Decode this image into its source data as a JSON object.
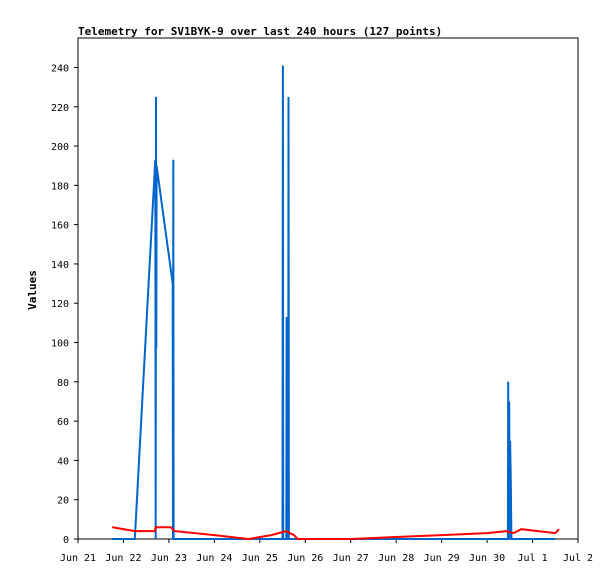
{
  "chart_data": {
    "type": "line",
    "title": "Telemetry for SV1BYK-9 over last 240 hours (127 points)",
    "xlabel": "",
    "ylabel": "Values",
    "ylim": [
      0,
      255
    ],
    "xlim": [
      "Jun 21",
      "Jul 2"
    ],
    "x_tick_labels": [
      "Jun 21",
      "Jun 22",
      "Jun 23",
      "Jun 24",
      "Jun 25",
      "Jun 26",
      "Jun 27",
      "Jun 28",
      "Jun 29",
      "Jun 30",
      "Jul 1",
      "Jul 2"
    ],
    "y_ticks": [
      0,
      20,
      40,
      60,
      80,
      100,
      120,
      140,
      160,
      180,
      200,
      220,
      240
    ],
    "grid": false,
    "legend": "none",
    "series": [
      {
        "color": "#0066cc",
        "points": [
          [
            "Jun 21 18:00",
            0
          ],
          [
            "Jun 22 06:00",
            0
          ],
          [
            "Jun 22 16:48",
            193
          ],
          [
            "Jun 22 17:00",
            0
          ],
          [
            "Jun 22 17:10",
            225
          ],
          [
            "Jun 22 17:20",
            97
          ],
          [
            "Jun 22 17:30",
            190
          ],
          [
            "Jun 23 02:00",
            130
          ],
          [
            "Jun 23 02:10",
            0
          ],
          [
            "Jun 23 02:20",
            193
          ],
          [
            "Jun 23 02:30",
            0
          ],
          [
            "Jun 25 12:00",
            0
          ],
          [
            "Jun 25 12:10",
            241
          ],
          [
            "Jun 25 12:20",
            0
          ],
          [
            "Jun 25 14:00",
            0
          ],
          [
            "Jun 25 14:10",
            113
          ],
          [
            "Jun 25 14:20",
            0
          ],
          [
            "Jun 25 15:00",
            0
          ],
          [
            "Jun 25 15:10",
            225
          ],
          [
            "Jun 25 15:20",
            0
          ],
          [
            "Jun 30 11:00",
            0
          ],
          [
            "Jun 30 11:10",
            80
          ],
          [
            "Jun 30 11:20",
            0
          ],
          [
            "Jun 30 11:40",
            70
          ],
          [
            "Jun 30 12:00",
            0
          ],
          [
            "Jun 30 12:10",
            50
          ],
          [
            "Jun 30 12:30",
            30
          ],
          [
            "Jun 30 12:50",
            0
          ],
          [
            "Jul 1 12:00",
            0
          ]
        ]
      },
      {
        "color": "#ff0000",
        "points": [
          [
            "Jun 21 18:00",
            6
          ],
          [
            "Jun 22 06:00",
            4
          ],
          [
            "Jun 22 16:00",
            4
          ],
          [
            "Jun 22 16:30",
            4
          ],
          [
            "Jun 22 17:00",
            6
          ],
          [
            "Jun 23 01:00",
            6
          ],
          [
            "Jun 23 03:00",
            4
          ],
          [
            "Jun 24 00:00",
            2
          ],
          [
            "Jun 24 18:00",
            0
          ],
          [
            "Jun 25 06:00",
            2
          ],
          [
            "Jun 25 14:00",
            4
          ],
          [
            "Jun 25 18:00",
            2
          ],
          [
            "Jun 25 20:00",
            0
          ],
          [
            "Jun 27 00:00",
            0
          ],
          [
            "Jun 28 00:00",
            1
          ],
          [
            "Jun 29 00:00",
            2
          ],
          [
            "Jun 30 00:00",
            3
          ],
          [
            "Jun 30 10:00",
            4
          ],
          [
            "Jun 30 14:00",
            3
          ],
          [
            "Jun 30 18:00",
            5
          ],
          [
            "Jul 1 12:00",
            3
          ],
          [
            "Jul 1 14:00",
            5
          ]
        ]
      }
    ]
  }
}
